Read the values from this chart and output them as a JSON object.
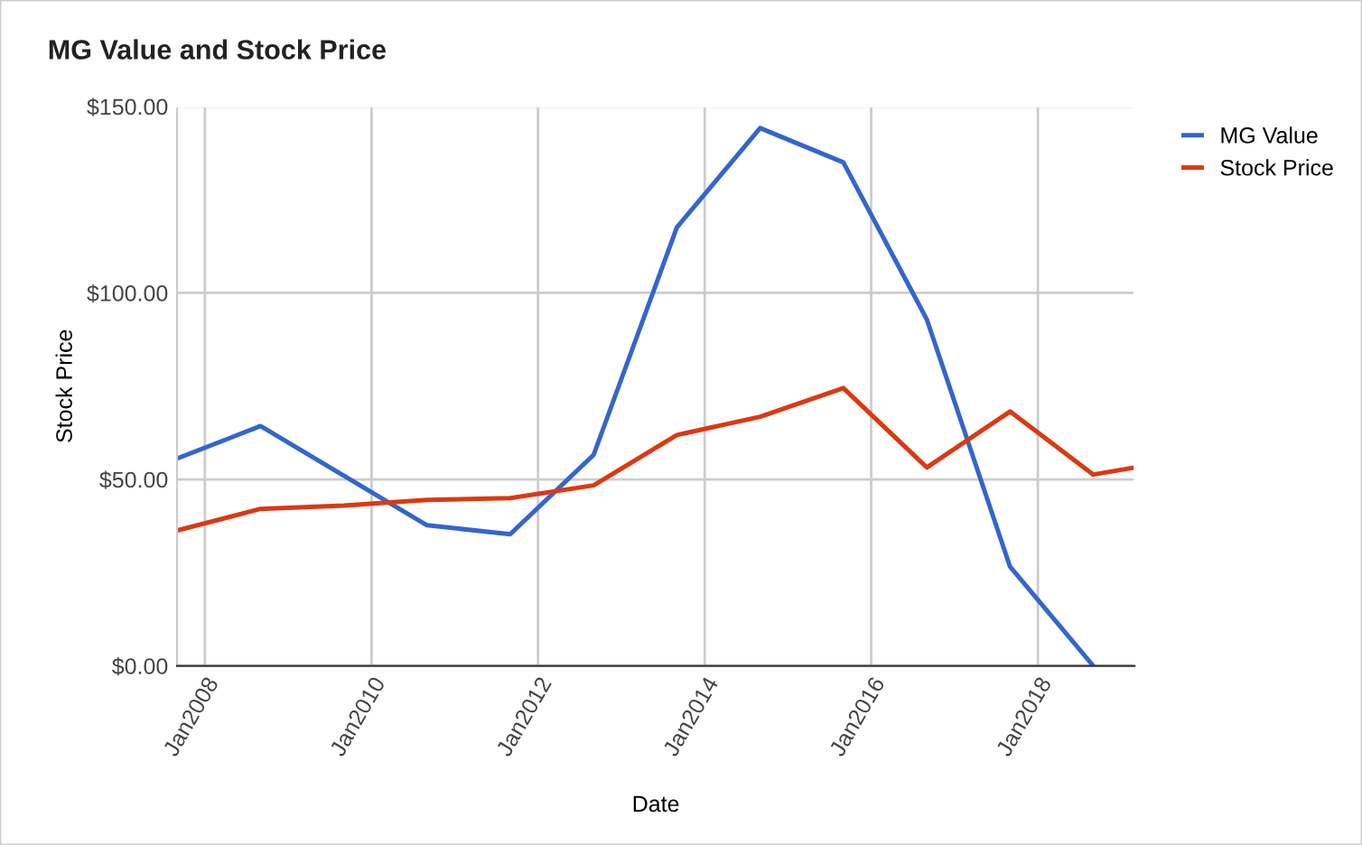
{
  "chart_data": {
    "type": "line",
    "title": "MG Value and Stock Price",
    "xlabel": "Date",
    "ylabel": "Stock Price",
    "x": [
      "2007-09",
      "2008-09",
      "2009-09",
      "2010-09",
      "2011-09",
      "2012-09",
      "2013-09",
      "2014-09",
      "2015-09",
      "2016-09",
      "2017-09",
      "2018-09",
      "2019-03"
    ],
    "series": [
      {
        "name": "MG Value",
        "color": "#3366cc",
        "values": [
          55.6,
          64.3,
          51,
          37.7,
          35.3,
          56.6,
          117.6,
          144.2,
          135,
          92.9,
          26.6,
          0,
          null
        ]
      },
      {
        "name": "Stock Price",
        "color": "#dc3912",
        "values": [
          36.3,
          42.1,
          43,
          44.5,
          45,
          48.4,
          61.9,
          66.8,
          74.5,
          53.2,
          68.2,
          51.3,
          53.2
        ]
      }
    ],
    "xlim": [
      "2007-09",
      "2019-03"
    ],
    "xticks": [
      {
        "value": "2008-01",
        "label": "Jan2008"
      },
      {
        "value": "2010-01",
        "label": "Jan2010"
      },
      {
        "value": "2012-01",
        "label": "Jan2012"
      },
      {
        "value": "2014-01",
        "label": "Jan2014"
      },
      {
        "value": "2016-01",
        "label": "Jan2016"
      },
      {
        "value": "2018-01",
        "label": "Jan2018"
      }
    ],
    "ylim": [
      0,
      150
    ],
    "yticks": [
      {
        "value": 0,
        "label": "$0.00"
      },
      {
        "value": 50,
        "label": "$50.00"
      },
      {
        "value": 100,
        "label": "$100.00"
      },
      {
        "value": 150,
        "label": "$150.00"
      }
    ],
    "grid": true,
    "legend": "top right",
    "marker": "none",
    "line_style": "solid"
  }
}
